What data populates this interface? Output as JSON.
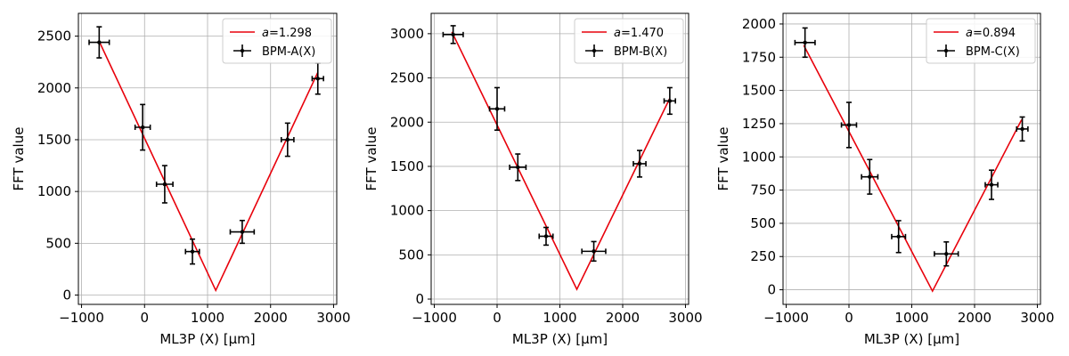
{
  "colors": {
    "fit": "#e8000b",
    "points": "#000000",
    "grid": "#b0b0b0"
  },
  "chart_data": [
    {
      "type": "scatter",
      "xlabel": "ML3P (X) [μm]",
      "ylabel": "FFT value",
      "xlim": [
        -1050,
        3050
      ],
      "ylim": [
        -90,
        2720
      ],
      "xticks": [
        -1000,
        0,
        1000,
        2000,
        3000
      ],
      "xtick_labels": [
        "−1000",
        "0",
        "1000",
        "2000",
        "3000"
      ],
      "yticks": [
        0,
        500,
        1000,
        1500,
        2000,
        2500
      ],
      "ytick_labels": [
        "0",
        "500",
        "1000",
        "1500",
        "2000",
        "2500"
      ],
      "grid": true,
      "legend": {
        "location": "upper-right",
        "fit_label_prefix": "a",
        "fit_label_value": "=1.298",
        "points_label": "BPM-A(X)"
      },
      "points": {
        "x": [
          -720,
          -30,
          320,
          760,
          1550,
          2270,
          2750
        ],
        "y": [
          2440,
          1620,
          1070,
          420,
          610,
          1500,
          2090
        ],
        "xerr": [
          160,
          120,
          130,
          110,
          190,
          100,
          90
        ],
        "yerr": [
          150,
          220,
          180,
          120,
          110,
          160,
          150
        ]
      },
      "fit": {
        "x": [
          -720,
          1130,
          2750
        ],
        "y": [
          2450,
          45,
          2150
        ]
      }
    },
    {
      "type": "scatter",
      "xlabel": "ML3P (X) [μm]",
      "ylabel": "FFT value",
      "xlim": [
        -1050,
        3050
      ],
      "ylim": [
        -60,
        3230
      ],
      "xticks": [
        -1000,
        0,
        1000,
        2000,
        3000
      ],
      "xtick_labels": [
        "−1000",
        "0",
        "1000",
        "2000",
        "3000"
      ],
      "yticks": [
        0,
        500,
        1000,
        1500,
        2000,
        2500,
        3000
      ],
      "ytick_labels": [
        "0",
        "500",
        "1000",
        "1500",
        "2000",
        "2500",
        "3000"
      ],
      "grid": true,
      "legend": {
        "location": "upper-right",
        "fit_label_prefix": "a",
        "fit_label_value": "=1.470",
        "points_label": "BPM-B(X)"
      },
      "points": {
        "x": [
          -700,
          0,
          330,
          780,
          1540,
          2270,
          2750
        ],
        "y": [
          2990,
          2150,
          1490,
          710,
          540,
          1530,
          2240
        ],
        "xerr": [
          160,
          120,
          130,
          110,
          190,
          100,
          90
        ],
        "yerr": [
          100,
          240,
          150,
          100,
          110,
          150,
          150
        ]
      },
      "fit": {
        "x": [
          -720,
          1270,
          2750
        ],
        "y": [
          3020,
          110,
          2270
        ]
      }
    },
    {
      "type": "scatter",
      "xlabel": "ML3P (X) [μm]",
      "ylabel": "FFT value",
      "xlim": [
        -1050,
        3050
      ],
      "ylim": [
        -110,
        2080
      ],
      "xticks": [
        -1000,
        0,
        1000,
        2000,
        3000
      ],
      "xtick_labels": [
        "−1000",
        "0",
        "1000",
        "2000",
        "3000"
      ],
      "yticks": [
        0,
        250,
        500,
        750,
        1000,
        1250,
        1500,
        1750,
        2000
      ],
      "ytick_labels": [
        "0",
        "250",
        "500",
        "750",
        "1000",
        "1250",
        "1500",
        "1750",
        "2000"
      ],
      "grid": true,
      "legend": {
        "location": "upper-right",
        "fit_label_prefix": "a",
        "fit_label_value": "=0.894",
        "points_label": "BPM-C(X)"
      },
      "points": {
        "x": [
          -700,
          0,
          330,
          790,
          1550,
          2270,
          2760
        ],
        "y": [
          1860,
          1240,
          850,
          400,
          270,
          790,
          1210
        ],
        "xerr": [
          160,
          120,
          130,
          110,
          190,
          100,
          90
        ],
        "yerr": [
          110,
          170,
          130,
          120,
          90,
          110,
          90
        ]
      },
      "fit": {
        "x": [
          -720,
          1330,
          2750
        ],
        "y": [
          1840,
          -10,
          1280
        ]
      }
    }
  ]
}
